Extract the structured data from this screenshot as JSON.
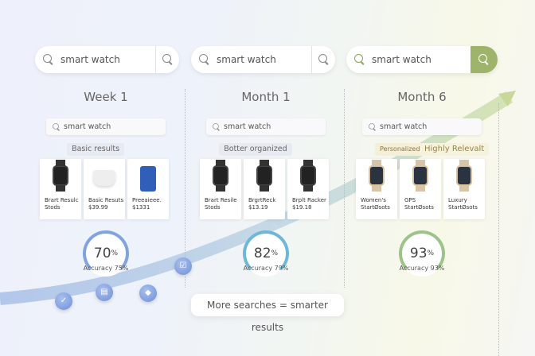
{
  "columns": [
    {
      "search": "smart watch",
      "title": "Week 1",
      "mini_search": "smart watch",
      "tags": [
        "Basic results"
      ],
      "products": [
        {
          "name": "Brart Resulc",
          "price": "Stods",
          "kind": "watch"
        },
        {
          "name": "Basic Resuts",
          "price": "$39.99",
          "kind": "earbuds"
        },
        {
          "name": "Preeaieee.",
          "price": "$1331",
          "kind": "suitcase"
        }
      ],
      "score": "70",
      "score_unit": "%",
      "accuracy": "Accuracy 75%",
      "accent": "#7fa5dc"
    },
    {
      "search": "smart watch",
      "title": "Month 1",
      "mini_search": "smart watch",
      "tags": [
        "Botter organized"
      ],
      "products": [
        {
          "name": "Brart Resile",
          "price": "Stods",
          "kind": "watch"
        },
        {
          "name": "BrgrtReck",
          "price": "$13.19",
          "kind": "watch"
        },
        {
          "name": "Brplt Racker",
          "price": "$19.18",
          "kind": "watch"
        }
      ],
      "score": "82",
      "score_unit": "%",
      "accuracy": "Accuracy 79%",
      "accent": "#6fb7d8"
    },
    {
      "search": "smart watch",
      "title": "Month 6",
      "mini_search": "smart watch",
      "tags": [
        "Personalized",
        "Highly Relevalt"
      ],
      "products": [
        {
          "name": "Women's",
          "price": "StartØsots",
          "kind": "gold-watch"
        },
        {
          "name": "GPS",
          "price": "StartØsots",
          "kind": "gold-watch"
        },
        {
          "name": "Luxury",
          "price": "StartØsots",
          "kind": "gold-watch"
        }
      ],
      "score": "93",
      "score_unit": "%",
      "accuracy": "Accuracy 93%",
      "accent": "#9cc48a"
    }
  ],
  "footer": "More searches = smarter results",
  "colors": {
    "search_button_active": "#9db46a",
    "curve": "#9fb8e6"
  }
}
